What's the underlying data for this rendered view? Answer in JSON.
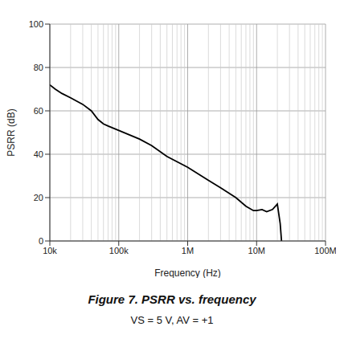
{
  "chart_data": {
    "type": "line",
    "title": "Figure 7. PSRR vs. frequency",
    "subtitle": "VS = 5 V, AV = +1",
    "x_label": "Frequency (Hz)",
    "y_label": "PSRR (dB)",
    "x": [
      10000,
      12000,
      15000,
      20000,
      30000,
      40000,
      50000,
      60000,
      70000,
      100000,
      200000,
      300000,
      500000,
      1000000,
      2000000,
      3000000,
      5000000,
      7000000,
      9000000,
      10000000,
      12000000,
      14000000,
      17000000,
      20000000,
      22000000,
      23000000
    ],
    "series": [
      {
        "name": "PSRR",
        "color": "#000000",
        "values": [
          72,
          70,
          68,
          66,
          63,
          60,
          56,
          54,
          53,
          51,
          47,
          44,
          39,
          34,
          28,
          24.5,
          20,
          16,
          14,
          14,
          14.5,
          13.5,
          14.5,
          17,
          8,
          0
        ]
      }
    ],
    "xlim": [
      10000,
      100000000
    ],
    "xticks": [
      {
        "value": 10000,
        "label": "10k"
      },
      {
        "value": 100000,
        "label": "100k"
      },
      {
        "value": 1000000,
        "label": "1M"
      },
      {
        "value": 10000000,
        "label": "10M"
      },
      {
        "value": 100000000,
        "label": "100M"
      }
    ],
    "ylim": [
      0,
      100
    ],
    "yticks": [
      0,
      20,
      40,
      60,
      80,
      100
    ],
    "log": "x",
    "grid": true,
    "legend": "none"
  }
}
